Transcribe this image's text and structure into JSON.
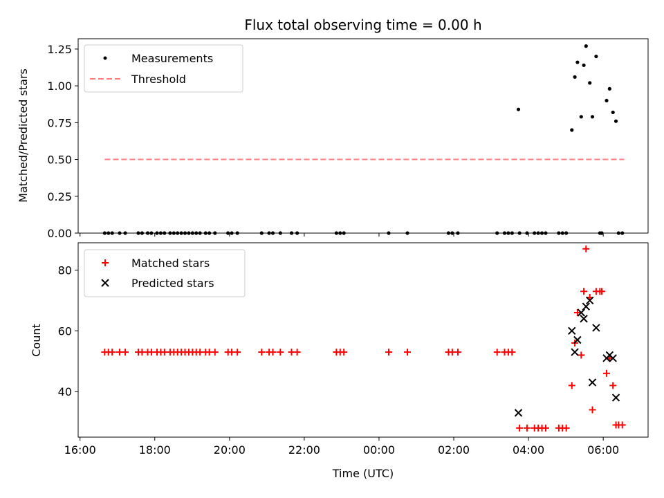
{
  "chart_data": [
    {
      "type": "scatter",
      "title": "Flux total observing time = 0.00 h",
      "xlabel": "",
      "ylabel": "Matched/Predicted stars",
      "xlim": [
        15.95,
        31.2
      ],
      "ylim": [
        0,
        1.32
      ],
      "yticks": [
        0.0,
        0.25,
        0.5,
        0.75,
        1.0,
        1.25
      ],
      "ytick_labels": [
        "0.00",
        "0.25",
        "0.50",
        "0.75",
        "1.00",
        "1.25"
      ],
      "legend_position": "upper-left",
      "series": [
        {
          "name": "Measurements",
          "marker": "dot",
          "color": "#000000",
          "points": [
            [
              16.66,
              0
            ],
            [
              16.76,
              0
            ],
            [
              16.86,
              0
            ],
            [
              17.06,
              0
            ],
            [
              17.21,
              0
            ],
            [
              17.56,
              0
            ],
            [
              17.66,
              0
            ],
            [
              17.81,
              0
            ],
            [
              17.91,
              0
            ],
            [
              18.06,
              0
            ],
            [
              18.16,
              0
            ],
            [
              18.26,
              0
            ],
            [
              18.41,
              0
            ],
            [
              18.51,
              0
            ],
            [
              18.61,
              0
            ],
            [
              18.71,
              0
            ],
            [
              18.81,
              0
            ],
            [
              18.91,
              0
            ],
            [
              19.01,
              0
            ],
            [
              19.11,
              0
            ],
            [
              19.21,
              0
            ],
            [
              19.36,
              0
            ],
            [
              19.46,
              0
            ],
            [
              19.61,
              0
            ],
            [
              19.96,
              0
            ],
            [
              20.06,
              0
            ],
            [
              20.21,
              0
            ],
            [
              20.86,
              0
            ],
            [
              21.06,
              0
            ],
            [
              21.16,
              0
            ],
            [
              21.36,
              0
            ],
            [
              21.66,
              0
            ],
            [
              21.81,
              0
            ],
            [
              22.86,
              0
            ],
            [
              22.96,
              0
            ],
            [
              23.06,
              0
            ],
            [
              24.26,
              0
            ],
            [
              24.76,
              0
            ],
            [
              25.86,
              0
            ],
            [
              25.96,
              0
            ],
            [
              26.11,
              0
            ],
            [
              27.16,
              0
            ],
            [
              27.36,
              0
            ],
            [
              27.46,
              0
            ],
            [
              27.56,
              0
            ],
            [
              27.73,
              0.84
            ],
            [
              27.76,
              0
            ],
            [
              27.96,
              0
            ],
            [
              28.16,
              0
            ],
            [
              28.26,
              0
            ],
            [
              28.36,
              0
            ],
            [
              28.46,
              0
            ],
            [
              28.81,
              0
            ],
            [
              28.91,
              0
            ],
            [
              29.01,
              0
            ],
            [
              29.16,
              0.7
            ],
            [
              29.24,
              1.06
            ],
            [
              29.31,
              1.16
            ],
            [
              29.41,
              0.79
            ],
            [
              29.48,
              1.14
            ],
            [
              29.54,
              1.27
            ],
            [
              29.64,
              1.02
            ],
            [
              29.71,
              0.79
            ],
            [
              29.81,
              1.2
            ],
            [
              29.91,
              0
            ],
            [
              29.96,
              0
            ],
            [
              30.09,
              0.9
            ],
            [
              30.17,
              0.98
            ],
            [
              30.26,
              0.82
            ],
            [
              30.34,
              0.76
            ],
            [
              30.41,
              0
            ],
            [
              30.51,
              0
            ]
          ]
        },
        {
          "name": "Threshold",
          "marker": "dashed-line",
          "color": "#ff7f7f",
          "points": [
            [
              16.66,
              0.5
            ],
            [
              30.56,
              0.5
            ]
          ]
        }
      ]
    },
    {
      "type": "scatter",
      "title": "",
      "xlabel": "Time (UTC)",
      "ylabel": "Count",
      "xlim": [
        15.95,
        31.2
      ],
      "ylim": [
        25,
        89
      ],
      "yticks": [
        40,
        60,
        80
      ],
      "ytick_labels": [
        "40",
        "60",
        "80"
      ],
      "xticks": [
        16,
        18,
        20,
        22,
        24,
        26,
        28,
        30
      ],
      "xtick_labels": [
        "16:00",
        "18:00",
        "20:00",
        "22:00",
        "00:00",
        "02:00",
        "04:00",
        "06:00"
      ],
      "legend_position": "upper-left",
      "series": [
        {
          "name": "Matched stars",
          "marker": "plus",
          "color": "#ff0000",
          "points": [
            [
              16.66,
              53
            ],
            [
              16.76,
              53
            ],
            [
              16.86,
              53
            ],
            [
              17.06,
              53
            ],
            [
              17.21,
              53
            ],
            [
              17.56,
              53
            ],
            [
              17.66,
              53
            ],
            [
              17.81,
              53
            ],
            [
              17.91,
              53
            ],
            [
              18.06,
              53
            ],
            [
              18.16,
              53
            ],
            [
              18.26,
              53
            ],
            [
              18.41,
              53
            ],
            [
              18.51,
              53
            ],
            [
              18.61,
              53
            ],
            [
              18.71,
              53
            ],
            [
              18.81,
              53
            ],
            [
              18.91,
              53
            ],
            [
              19.01,
              53
            ],
            [
              19.11,
              53
            ],
            [
              19.21,
              53
            ],
            [
              19.36,
              53
            ],
            [
              19.46,
              53
            ],
            [
              19.61,
              53
            ],
            [
              19.96,
              53
            ],
            [
              20.06,
              53
            ],
            [
              20.21,
              53
            ],
            [
              20.86,
              53
            ],
            [
              21.06,
              53
            ],
            [
              21.16,
              53
            ],
            [
              21.36,
              53
            ],
            [
              21.66,
              53
            ],
            [
              21.81,
              53
            ],
            [
              22.86,
              53
            ],
            [
              22.96,
              53
            ],
            [
              23.06,
              53
            ],
            [
              24.26,
              53
            ],
            [
              24.76,
              53
            ],
            [
              25.86,
              53
            ],
            [
              25.96,
              53
            ],
            [
              26.11,
              53
            ],
            [
              27.16,
              53
            ],
            [
              27.36,
              53
            ],
            [
              27.46,
              53
            ],
            [
              27.56,
              53
            ],
            [
              27.76,
              28
            ],
            [
              27.96,
              28
            ],
            [
              28.16,
              28
            ],
            [
              28.26,
              28
            ],
            [
              28.36,
              28
            ],
            [
              28.46,
              28
            ],
            [
              28.81,
              28
            ],
            [
              28.91,
              28
            ],
            [
              29.01,
              28
            ],
            [
              29.16,
              42
            ],
            [
              29.24,
              56
            ],
            [
              29.31,
              66
            ],
            [
              29.41,
              52
            ],
            [
              29.48,
              73
            ],
            [
              29.54,
              87
            ],
            [
              29.64,
              71
            ],
            [
              29.71,
              34
            ],
            [
              29.81,
              73
            ],
            [
              29.91,
              73
            ],
            [
              29.96,
              73
            ],
            [
              30.09,
              46
            ],
            [
              30.17,
              51
            ],
            [
              30.26,
              42
            ],
            [
              30.34,
              29
            ],
            [
              30.41,
              29
            ],
            [
              30.51,
              29
            ]
          ]
        },
        {
          "name": "Predicted stars",
          "marker": "x",
          "color": "#000000",
          "points": [
            [
              27.73,
              33
            ],
            [
              29.16,
              60
            ],
            [
              29.24,
              53
            ],
            [
              29.31,
              57
            ],
            [
              29.41,
              66
            ],
            [
              29.48,
              64
            ],
            [
              29.54,
              68
            ],
            [
              29.64,
              70
            ],
            [
              29.71,
              43
            ],
            [
              29.81,
              61
            ],
            [
              30.09,
              51
            ],
            [
              30.17,
              52
            ],
            [
              30.26,
              51
            ],
            [
              30.34,
              38
            ]
          ]
        }
      ]
    }
  ]
}
